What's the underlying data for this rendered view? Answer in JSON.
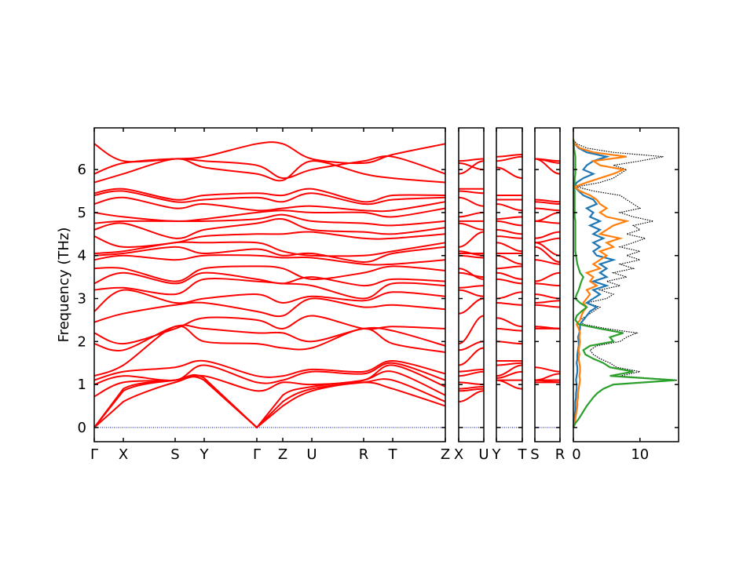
{
  "chart_data": {
    "type": "line",
    "ylabel": "Frequency (THz)",
    "ylim": [
      -0.33,
      6.97
    ],
    "yticks": [
      "0",
      "1",
      "2",
      "3",
      "4",
      "5",
      "6"
    ],
    "band_color": "#ff0000",
    "zero_line_color": "#00008b",
    "main_path": [
      "Γ",
      "X",
      "S",
      "Y",
      "Γ",
      "Z",
      "U",
      "R",
      "T",
      "Z"
    ],
    "side_paths": [
      [
        "X",
        "U"
      ],
      [
        "Y",
        "T"
      ],
      [
        "S",
        "R"
      ]
    ],
    "bands": [
      [
        0,
        0.6,
        1.05,
        1.1,
        0,
        0.5,
        0.85,
        1.05,
        0.9,
        0.5
      ],
      [
        0,
        0.85,
        1.1,
        1.1,
        0,
        0.6,
        0.9,
        1.05,
        1.1,
        0.6
      ],
      [
        0,
        0.9,
        1.1,
        1.15,
        0,
        0.75,
        0.95,
        1.1,
        1.3,
        0.75
      ],
      [
        0.72,
        1.05,
        1.1,
        1.2,
        0.85,
        1.05,
        1.0,
        1.1,
        1.45,
        0.95
      ],
      [
        1.0,
        1.2,
        1.1,
        1.45,
        1.05,
        1.1,
        1.3,
        1.25,
        1.5,
        1.1
      ],
      [
        1.1,
        1.3,
        1.4,
        1.55,
        1.2,
        1.2,
        1.35,
        1.3,
        1.55,
        1.25
      ],
      [
        1.2,
        1.45,
        2.35,
        2.0,
        1.95,
        1.85,
        1.85,
        2.3,
        1.95,
        1.75
      ],
      [
        1.95,
        1.8,
        2.35,
        2.3,
        2.2,
        2.2,
        2.0,
        2.3,
        2.25,
        1.9
      ],
      [
        2.2,
        1.95,
        2.3,
        2.55,
        2.5,
        2.3,
        2.6,
        2.3,
        2.35,
        2.3
      ],
      [
        2.45,
        2.65,
        2.85,
        2.9,
        2.7,
        2.6,
        3.0,
        2.8,
        2.85,
        2.75
      ],
      [
        2.7,
        3.2,
        2.9,
        3.0,
        3.1,
        2.9,
        3.05,
        2.95,
        3.15,
        3.05
      ],
      [
        3.2,
        3.25,
        3.1,
        3.45,
        3.4,
        3.35,
        3.3,
        3.0,
        3.35,
        3.3
      ],
      [
        3.35,
        3.6,
        3.35,
        3.6,
        3.45,
        3.35,
        3.5,
        3.3,
        3.45,
        3.4
      ],
      [
        3.7,
        3.7,
        3.4,
        3.7,
        3.75,
        3.7,
        3.45,
        3.6,
        3.75,
        3.65
      ],
      [
        3.9,
        4.0,
        3.9,
        4.0,
        4.0,
        3.95,
        3.95,
        3.8,
        3.8,
        3.9
      ],
      [
        4.0,
        4.05,
        4.2,
        4.05,
        4.15,
        4.0,
        4.05,
        3.85,
        4.05,
        4.2
      ],
      [
        4.05,
        4.1,
        4.3,
        4.3,
        4.3,
        4.1,
        4.0,
        4.0,
        4.1,
        4.3
      ],
      [
        4.45,
        4.2,
        4.3,
        4.45,
        4.5,
        4.5,
        4.55,
        4.4,
        4.4,
        4.5
      ],
      [
        4.6,
        4.75,
        4.4,
        4.6,
        4.75,
        4.85,
        4.6,
        4.55,
        4.5,
        4.65
      ],
      [
        4.75,
        4.8,
        4.8,
        4.8,
        4.85,
        4.95,
        4.8,
        4.75,
        4.7,
        4.8
      ],
      [
        5.0,
        4.9,
        4.8,
        4.85,
        5.0,
        5.05,
        5.0,
        5.0,
        4.9,
        5.1
      ],
      [
        5.2,
        5.35,
        5.1,
        5.2,
        5.05,
        5.1,
        5.15,
        5.05,
        5.05,
        5.25
      ],
      [
        5.4,
        5.5,
        5.25,
        5.3,
        5.35,
        5.25,
        5.45,
        5.2,
        5.3,
        5.35
      ],
      [
        5.45,
        5.55,
        5.3,
        5.4,
        5.45,
        5.4,
        5.55,
        5.25,
        5.4,
        5.4
      ],
      [
        5.7,
        5.9,
        6.25,
        6.05,
        5.9,
        5.75,
        6.2,
        5.9,
        5.8,
        5.7
      ],
      [
        5.9,
        6.15,
        6.25,
        6.2,
        6.1,
        5.8,
        6.0,
        6.2,
        6.3,
        5.9
      ],
      [
        6.6,
        6.2,
        6.25,
        6.3,
        6.6,
        6.6,
        6.25,
        6.15,
        6.35,
        6.6
      ]
    ],
    "dos": {
      "xticks": [
        "0",
        "10"
      ],
      "xlim": [
        0,
        15.8
      ],
      "frequency_step": 0.1,
      "series": [
        {
          "color": "#000000",
          "style": "dotted",
          "values": [
            0,
            0.3,
            0.8,
            1.2,
            1.6,
            2.0,
            2.5,
            3.0,
            3.6,
            4.5,
            6,
            15.6,
            7,
            10,
            6.5,
            5.5,
            4,
            3,
            2.5,
            3.5,
            7,
            8,
            9.5,
            5,
            1.5,
            1,
            2,
            3,
            4,
            2,
            5,
            6,
            4,
            7,
            5,
            8,
            6,
            9,
            7,
            10,
            8,
            10,
            7,
            9,
            10.8,
            8,
            10,
            9,
            12,
            9,
            7,
            10,
            9,
            8,
            7,
            3,
            0.5,
            4,
            6,
            7,
            8,
            6,
            10,
            13.5,
            6,
            2,
            0.5,
            0
          ]
        },
        {
          "color": "#1f77b4",
          "style": "solid",
          "values": [
            0,
            0.1,
            0.2,
            0.2,
            0.3,
            0.3,
            0.3,
            0.4,
            0.4,
            0.5,
            0.5,
            0.4,
            0.5,
            0.6,
            0.6,
            0.5,
            0.6,
            0.6,
            0.7,
            0.8,
            0.8,
            0.7,
            0.9,
            1,
            1,
            1.5,
            2,
            2.5,
            3.5,
            2,
            3,
            4,
            3,
            5,
            3,
            5,
            4,
            5,
            4,
            6,
            3.5,
            3,
            4,
            3,
            4.5,
            3,
            4,
            2.5,
            4,
            2.5,
            3,
            2,
            3.5,
            3,
            1.5,
            0.8,
            0.2,
            0.5,
            1.5,
            3,
            1.5,
            2,
            3,
            5,
            2,
            0.8,
            0.2,
            0
          ]
        },
        {
          "color": "#ff7f0e",
          "style": "solid",
          "values": [
            0,
            0.2,
            0.3,
            0.4,
            0.5,
            0.6,
            0.6,
            0.7,
            0.7,
            0.8,
            0.9,
            1,
            0.9,
            1,
            1,
            0.9,
            0.8,
            0.9,
            0.8,
            0.9,
            1,
            0.9,
            1,
            0.8,
            0.5,
            1,
            1.2,
            1.5,
            2,
            1.5,
            2,
            2.5,
            2,
            3.5,
            2.5,
            3,
            2,
            4,
            3,
            4,
            5,
            4,
            6,
            5,
            7,
            4,
            5,
            6,
            8,
            5,
            4,
            5,
            4,
            3.5,
            2.5,
            1,
            0.2,
            2,
            4,
            6,
            7.5,
            4,
            3,
            8,
            3,
            1,
            0.2,
            0
          ]
        },
        {
          "color": "#2ca02c",
          "style": "solid",
          "values": [
            0,
            0.3,
            0.8,
            1.2,
            1.6,
            2.0,
            2.5,
            3.0,
            3.6,
            4.5,
            6,
            15.3,
            5.5,
            9,
            5.5,
            4.5,
            3,
            1.8,
            1.5,
            2.5,
            6,
            5.5,
            7.5,
            4,
            0.8,
            0.3,
            0.5,
            1.2,
            2,
            1,
            0.3,
            0.5,
            0.8,
            1,
            1.2,
            1.5,
            1,
            0.8,
            0.6,
            0.5,
            0.4,
            0.3,
            0.3,
            0.3,
            0.3,
            0.3,
            0.3,
            0.3,
            0.3,
            0.2,
            0.2,
            0.2,
            0.2,
            0.2,
            0.2,
            0.2,
            0.1,
            0.2,
            0.2,
            0.3,
            0.3,
            0.3,
            0.3,
            0.3,
            0.2,
            0.1,
            0.1,
            0
          ]
        }
      ]
    }
  }
}
